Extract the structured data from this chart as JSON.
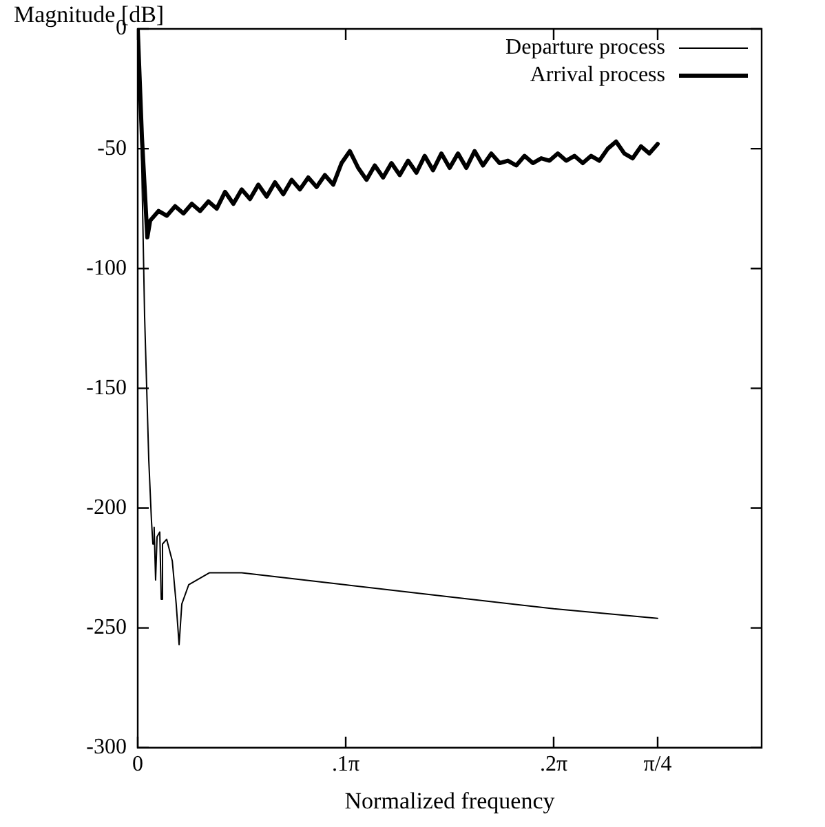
{
  "chart_data": {
    "type": "line",
    "xlabel": "Normalized frequency",
    "ylabel": "Magnitude [dB]",
    "xlim": [
      0,
      0.9425
    ],
    "xticks": [
      0,
      {
        "value": 0.3142,
        "label": ".1π"
      },
      {
        "value": 0.6283,
        "label": ".2π"
      },
      {
        "value": 0.7854,
        "label": "π/4"
      }
    ],
    "ylim": [
      -300,
      0
    ],
    "yticks": [
      -300,
      -250,
      -200,
      -150,
      -100,
      -50,
      0
    ],
    "grid": false,
    "legend": "top right",
    "marker": "none",
    "series": [
      {
        "name": "Departure process",
        "color": "#000000",
        "line_style": "solid",
        "x": [
          0,
          0.0063,
          0.0104,
          0.0167,
          0.0207,
          0.0229,
          0.0248,
          0.027,
          0.0292,
          0.0333,
          0.0355,
          0.0374,
          0.0437,
          0.0522,
          0.0581,
          0.0625,
          0.0666,
          0.077,
          0.1081,
          0.1571,
          0.3142,
          0.4712,
          0.6283,
          0.7854
        ],
        "values": [
          0,
          -60,
          -120,
          -180,
          -205,
          -215,
          -208,
          -230,
          -212,
          -210,
          -238,
          -215,
          -213,
          -222,
          -240,
          -257,
          -240,
          -232,
          -227,
          -227,
          -232,
          -237,
          -242,
          -246
        ]
      },
      {
        "name": "Arrival process",
        "color": "#000000",
        "line_style": "solid",
        "x": [
          0,
          0.0063,
          0.0145,
          0.0188,
          0.0314,
          0.044,
          0.0565,
          0.0691,
          0.0817,
          0.0942,
          0.1068,
          0.1194,
          0.1319,
          0.1445,
          0.1571,
          0.1696,
          0.1822,
          0.1948,
          0.2073,
          0.2199,
          0.2325,
          0.245,
          0.2576,
          0.2702,
          0.2827,
          0.2953,
          0.3079,
          0.3204,
          0.333,
          0.3456,
          0.3581,
          0.3707,
          0.3833,
          0.3958,
          0.4084,
          0.421,
          0.4335,
          0.4461,
          0.4587,
          0.4712,
          0.4838,
          0.4964,
          0.5089,
          0.5215,
          0.5341,
          0.5466,
          0.5592,
          0.5718,
          0.5843,
          0.5969,
          0.6095,
          0.622,
          0.6346,
          0.6472,
          0.6597,
          0.6723,
          0.6849,
          0.6974,
          0.71,
          0.7226,
          0.7351,
          0.7477,
          0.7603,
          0.7728,
          0.7854
        ],
        "values": [
          0,
          -45,
          -87,
          -80,
          -76,
          -78,
          -74,
          -77,
          -73,
          -76,
          -72,
          -75,
          -68,
          -73,
          -67,
          -71,
          -65,
          -70,
          -64,
          -69,
          -63,
          -67,
          -62,
          -66,
          -61,
          -65,
          -56,
          -51,
          -58,
          -63,
          -57,
          -62,
          -56,
          -61,
          -55,
          -60,
          -53,
          -59,
          -52,
          -58,
          -52,
          -58,
          -51,
          -57,
          -52,
          -56,
          -55,
          -57,
          -53,
          -56,
          -54,
          -55,
          -52,
          -55,
          -53,
          -56,
          -53,
          -55,
          -50,
          -47,
          -52,
          -54,
          -49,
          -52,
          -48
        ]
      }
    ]
  }
}
